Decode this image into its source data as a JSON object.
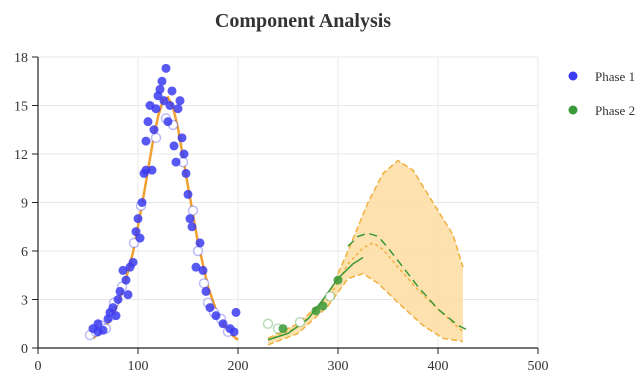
{
  "chart_data": {
    "type": "scatter",
    "title": "Component Analysis",
    "xlabel": "",
    "ylabel": "",
    "xlim": [
      0,
      500
    ],
    "ylim": [
      0,
      18
    ],
    "xticks": [
      0,
      100,
      200,
      300,
      400,
      500
    ],
    "yticks": [
      0,
      3,
      6,
      9,
      12,
      15,
      18
    ],
    "grid": true,
    "legend": {
      "placement": "right",
      "entries": [
        {
          "name": "Phase 1",
          "color": "#3b3bf0"
        },
        {
          "name": "Phase 2",
          "color": "#3a9a3a"
        }
      ]
    },
    "series": [
      {
        "name": "Phase 1",
        "color": "#3b3bf0",
        "points": [
          [
            55,
            1.2
          ],
          [
            60,
            1.5
          ],
          [
            65,
            1.1
          ],
          [
            70,
            1.8
          ],
          [
            72,
            2.2
          ],
          [
            75,
            2.5
          ],
          [
            78,
            2.0
          ],
          [
            80,
            3.0
          ],
          [
            82,
            3.5
          ],
          [
            85,
            4.8
          ],
          [
            88,
            4.2
          ],
          [
            90,
            3.3
          ],
          [
            92,
            5.0
          ],
          [
            95,
            5.3
          ],
          [
            98,
            7.2
          ],
          [
            100,
            8.0
          ],
          [
            102,
            6.8
          ],
          [
            104,
            9.0
          ],
          [
            106,
            10.8
          ],
          [
            108,
            12.8
          ],
          [
            110,
            14.0
          ],
          [
            112,
            15.0
          ],
          [
            114,
            11.0
          ],
          [
            116,
            13.5
          ],
          [
            118,
            14.8
          ],
          [
            120,
            15.6
          ],
          [
            122,
            16.0
          ],
          [
            124,
            16.5
          ],
          [
            126,
            15.3
          ],
          [
            128,
            17.3
          ],
          [
            130,
            14.0
          ],
          [
            132,
            15.0
          ],
          [
            134,
            15.9
          ],
          [
            136,
            12.5
          ],
          [
            138,
            11.5
          ],
          [
            140,
            14.8
          ],
          [
            142,
            15.3
          ],
          [
            144,
            13.0
          ],
          [
            146,
            12.0
          ],
          [
            148,
            10.8
          ],
          [
            150,
            9.5
          ],
          [
            152,
            8.0
          ],
          [
            154,
            7.5
          ],
          [
            158,
            5.0
          ],
          [
            162,
            6.5
          ],
          [
            165,
            4.8
          ],
          [
            168,
            3.5
          ],
          [
            172,
            2.5
          ],
          [
            178,
            2.0
          ],
          [
            185,
            1.5
          ],
          [
            192,
            1.2
          ],
          [
            198,
            2.2
          ],
          [
            196,
            1.0
          ],
          [
            60,
            1.0
          ],
          [
            108,
            11.0
          ]
        ],
        "faint_points": [
          [
            52,
            0.8
          ],
          [
            58,
            1.0
          ],
          [
            63,
            1.4
          ],
          [
            68,
            1.2
          ],
          [
            73,
            2.0
          ],
          [
            76,
            2.8
          ],
          [
            84,
            3.8
          ],
          [
            96,
            6.5
          ],
          [
            103,
            8.8
          ],
          [
            118,
            13.0
          ],
          [
            128,
            14.2
          ],
          [
            135,
            13.8
          ],
          [
            145,
            11.5
          ],
          [
            155,
            8.5
          ],
          [
            160,
            6.0
          ],
          [
            166,
            4.0
          ],
          [
            170,
            2.8
          ],
          [
            176,
            2.2
          ],
          [
            183,
            1.8
          ],
          [
            190,
            1.0
          ]
        ],
        "fit_line": [
          [
            55,
            0.6
          ],
          [
            65,
            1.1
          ],
          [
            75,
            2.0
          ],
          [
            85,
            3.6
          ],
          [
            95,
            5.9
          ],
          [
            105,
            9.2
          ],
          [
            115,
            12.8
          ],
          [
            120,
            14.3
          ],
          [
            125,
            15.3
          ],
          [
            130,
            15.5
          ],
          [
            135,
            14.9
          ],
          [
            140,
            13.6
          ],
          [
            150,
            10.0
          ],
          [
            160,
            6.5
          ],
          [
            170,
            3.8
          ],
          [
            180,
            2.0
          ],
          [
            190,
            1.0
          ],
          [
            200,
            0.5
          ]
        ],
        "fit_color": "#f0a030"
      },
      {
        "name": "Phase 2",
        "color": "#3a9a3a",
        "points": [
          [
            278,
            2.3
          ],
          [
            285,
            2.6
          ],
          [
            300,
            4.2
          ],
          [
            245,
            1.2
          ]
        ],
        "faint_points": [
          [
            230,
            1.5
          ],
          [
            240,
            1.2
          ],
          [
            262,
            1.6
          ],
          [
            292,
            3.2
          ]
        ],
        "fit_line": [
          [
            230,
            0.5
          ],
          [
            250,
            0.9
          ],
          [
            270,
            1.8
          ],
          [
            285,
            3.0
          ],
          [
            300,
            4.3
          ],
          [
            315,
            5.2
          ],
          [
            325,
            5.6
          ]
        ],
        "forecast_line": [
          [
            310,
            6.3
          ],
          [
            320,
            6.9
          ],
          [
            330,
            7.1
          ],
          [
            340,
            6.9
          ],
          [
            350,
            6.2
          ],
          [
            365,
            5.0
          ],
          [
            380,
            3.8
          ],
          [
            400,
            2.4
          ],
          [
            420,
            1.4
          ],
          [
            430,
            1.1
          ]
        ],
        "upper_band": [
          [
            230,
            0.6
          ],
          [
            260,
            1.5
          ],
          [
            290,
            3.2
          ],
          [
            310,
            6.0
          ],
          [
            330,
            9.0
          ],
          [
            345,
            10.8
          ],
          [
            360,
            11.6
          ],
          [
            375,
            11.0
          ],
          [
            395,
            9.0
          ],
          [
            415,
            7.0
          ],
          [
            425,
            5.0
          ]
        ],
        "mid_band": [
          [
            230,
            0.5
          ],
          [
            260,
            1.3
          ],
          [
            290,
            3.0
          ],
          [
            310,
            5.2
          ],
          [
            325,
            6.2
          ],
          [
            335,
            6.5
          ],
          [
            345,
            6.1
          ],
          [
            360,
            5.0
          ],
          [
            380,
            3.6
          ],
          [
            400,
            2.4
          ],
          [
            425,
            1.0
          ]
        ],
        "lower_band": [
          [
            230,
            0.2
          ],
          [
            260,
            0.9
          ],
          [
            290,
            2.6
          ],
          [
            310,
            4.3
          ],
          [
            325,
            4.6
          ],
          [
            340,
            4.0
          ],
          [
            360,
            2.8
          ],
          [
            385,
            1.4
          ],
          [
            405,
            0.6
          ],
          [
            425,
            0.4
          ]
        ],
        "band_color": "#fddca0",
        "band_line_color": "#f0b040"
      }
    ]
  }
}
